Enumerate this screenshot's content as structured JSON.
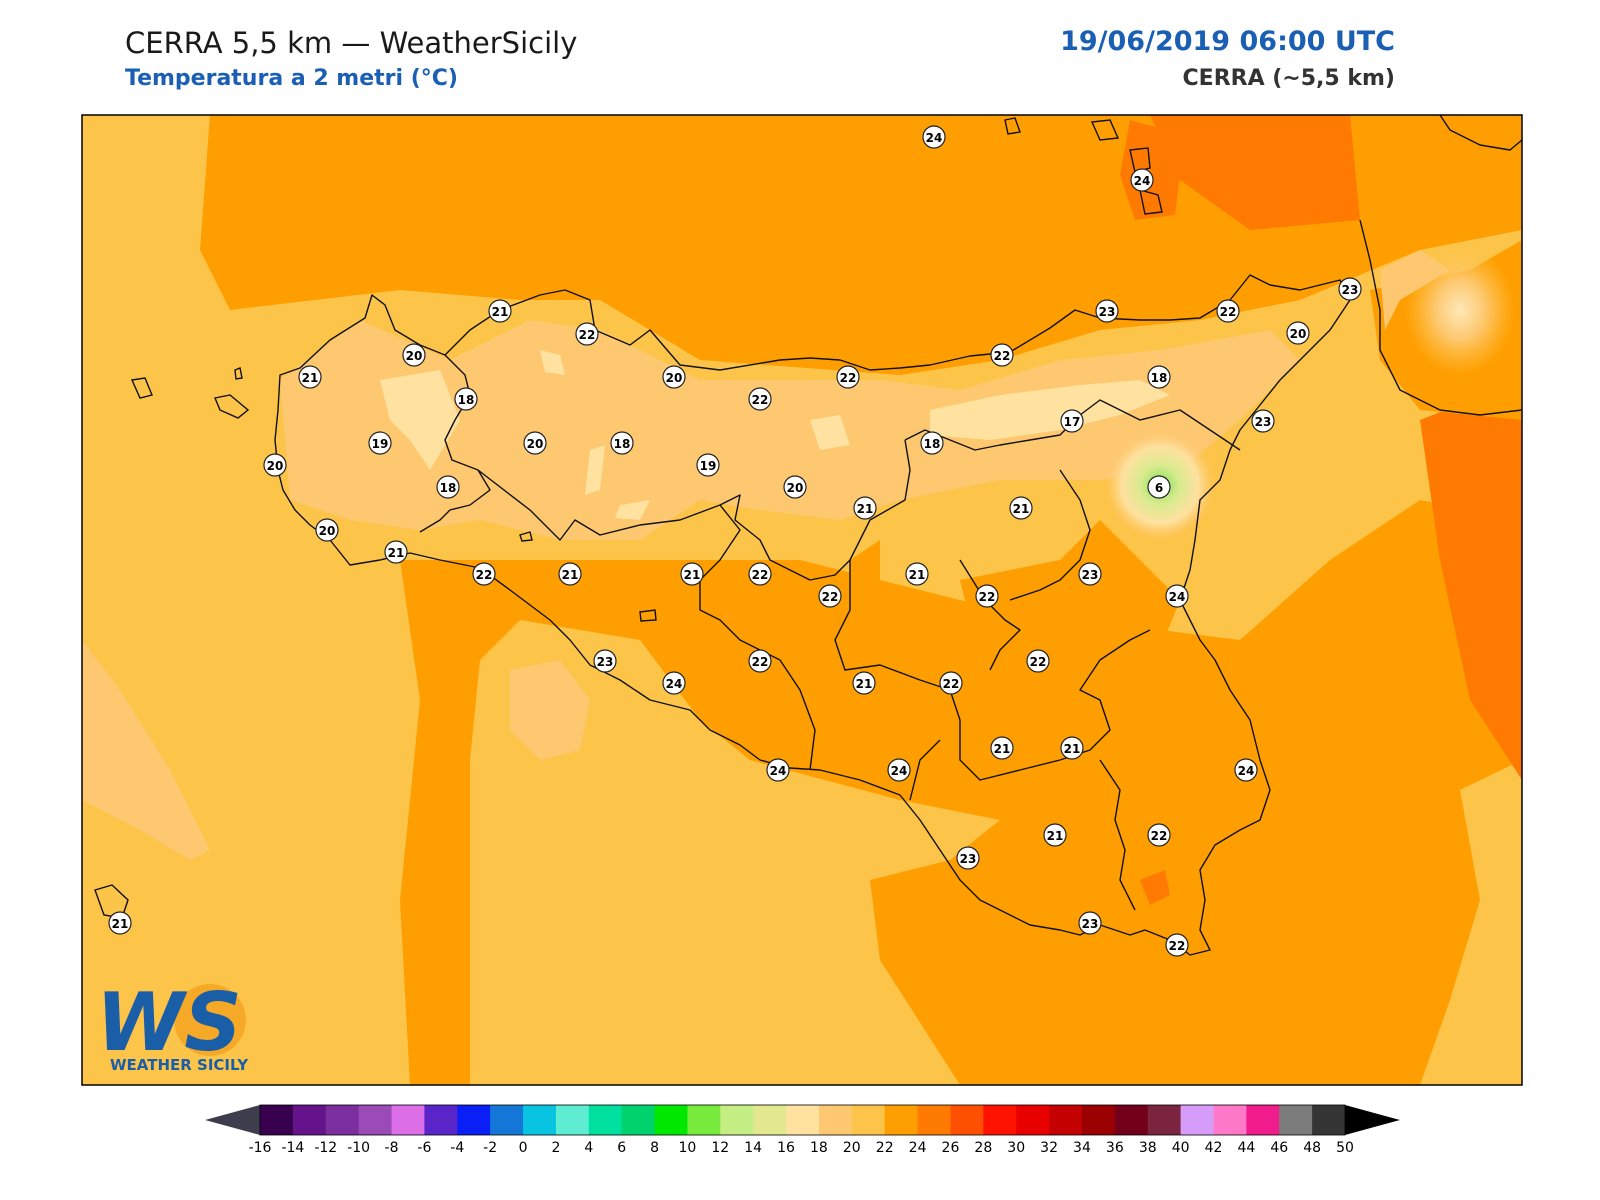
{
  "header": {
    "title": "CERRA 5,5 km — WeatherSicily",
    "subtitle": "Temperatura a 2 metri (°C)",
    "datetime": "19/06/2019 06:00 UTC",
    "model": "CERRA (~5,5 km)"
  },
  "logo": {
    "letters": "WS",
    "name": "WEATHER SICILY"
  },
  "colorbar": {
    "ticks": [
      "-16",
      "-14",
      "-12",
      "-10",
      "-8",
      "-6",
      "-4",
      "-2",
      "0",
      "2",
      "4",
      "6",
      "8",
      "10",
      "12",
      "14",
      "16",
      "18",
      "20",
      "22",
      "24",
      "26",
      "28",
      "30",
      "32",
      "34",
      "36",
      "38",
      "40",
      "42",
      "44",
      "46",
      "48",
      "50"
    ],
    "colors": [
      "#3a0050",
      "#65138a",
      "#7b2f9f",
      "#9a4bb8",
      "#dc6fe8",
      "#5a25c8",
      "#0a1ef6",
      "#1477d8",
      "#08c4e0",
      "#5eecd2",
      "#00e09e",
      "#00d26e",
      "#00e800",
      "#77ea3b",
      "#c5ee85",
      "#e2e790",
      "#ffe1a0",
      "#fdc870",
      "#fdc44a",
      "#ff9e00",
      "#ff7a00",
      "#ff4f00",
      "#ff1200",
      "#e80000",
      "#c40000",
      "#9a0000",
      "#72001a",
      "#7a2440",
      "#d59df9",
      "#ff79c8",
      "#f01c8c",
      "#7c7c7c",
      "#353535"
    ],
    "under_color": "#3d3d4d",
    "over_color": "#000000"
  },
  "map_labels": [
    {
      "value": "24"
    },
    {
      "value": "24"
    },
    {
      "value": "21"
    },
    {
      "value": "22"
    },
    {
      "value": "23"
    },
    {
      "value": "22"
    },
    {
      "value": "23"
    },
    {
      "value": "20"
    },
    {
      "value": "21"
    },
    {
      "value": "20"
    },
    {
      "value": "18"
    },
    {
      "value": "20"
    },
    {
      "value": "22"
    },
    {
      "value": "22"
    },
    {
      "value": "22"
    },
    {
      "value": "18"
    },
    {
      "value": "17"
    },
    {
      "value": "23"
    },
    {
      "value": "20"
    },
    {
      "value": "19"
    },
    {
      "value": "20"
    },
    {
      "value": "18"
    },
    {
      "value": "19"
    },
    {
      "value": "18"
    },
    {
      "value": "6"
    },
    {
      "value": "20"
    },
    {
      "value": "18"
    },
    {
      "value": "20"
    },
    {
      "value": "21"
    },
    {
      "value": "21"
    },
    {
      "value": "21"
    },
    {
      "value": "22"
    },
    {
      "value": "21"
    },
    {
      "value": "21"
    },
    {
      "value": "22"
    },
    {
      "value": "21"
    },
    {
      "value": "22"
    },
    {
      "value": "23"
    },
    {
      "value": "24"
    },
    {
      "value": "22"
    },
    {
      "value": "23"
    },
    {
      "value": "24"
    },
    {
      "value": "22"
    },
    {
      "value": "22"
    },
    {
      "value": "21"
    },
    {
      "value": "22"
    },
    {
      "value": "21"
    },
    {
      "value": "21"
    },
    {
      "value": "24"
    },
    {
      "value": "24"
    },
    {
      "value": "24"
    },
    {
      "value": "21"
    },
    {
      "value": "22"
    },
    {
      "value": "23"
    },
    {
      "value": "23"
    },
    {
      "value": "22"
    },
    {
      "value": "21"
    }
  ]
}
